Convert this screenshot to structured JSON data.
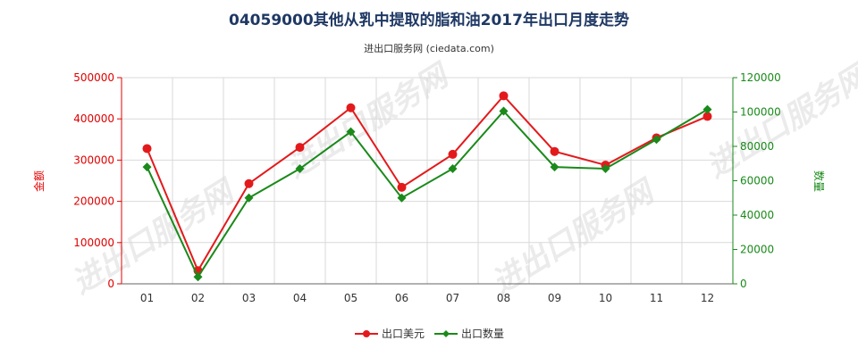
{
  "chart_data": {
    "type": "line",
    "title": "04059000其他从乳中提取的脂和油2017年出口月度走势",
    "subtitle": "进出口服务网 (ciedata.com)",
    "categories": [
      "01",
      "02",
      "03",
      "04",
      "05",
      "06",
      "07",
      "08",
      "09",
      "10",
      "11",
      "12"
    ],
    "y_left": {
      "label": "金额",
      "ylim": [
        0,
        500000
      ],
      "ticks": [
        "0",
        "100000",
        "200000",
        "300000",
        "400000",
        "500000"
      ]
    },
    "y_right": {
      "label": "数量",
      "ylim": [
        0,
        120000
      ],
      "ticks": [
        "0",
        "20000",
        "40000",
        "60000",
        "80000",
        "100000",
        "120000"
      ]
    },
    "series": [
      {
        "name": "出口美元",
        "axis": "left",
        "color": "#e31a1c",
        "marker": "circle",
        "values": [
          328000,
          32000,
          243000,
          331000,
          427000,
          234000,
          314000,
          456000,
          321000,
          288000,
          354000,
          406000
        ]
      },
      {
        "name": "出口数量",
        "axis": "right",
        "color": "#1a8a1a",
        "marker": "diamond",
        "values": [
          68000,
          4000,
          50000,
          67000,
          88500,
          50000,
          67000,
          100500,
          68000,
          67000,
          84000,
          101500
        ]
      }
    ],
    "grid": true,
    "legend_position": "bottom-center",
    "watermark": "进出口服务网"
  }
}
